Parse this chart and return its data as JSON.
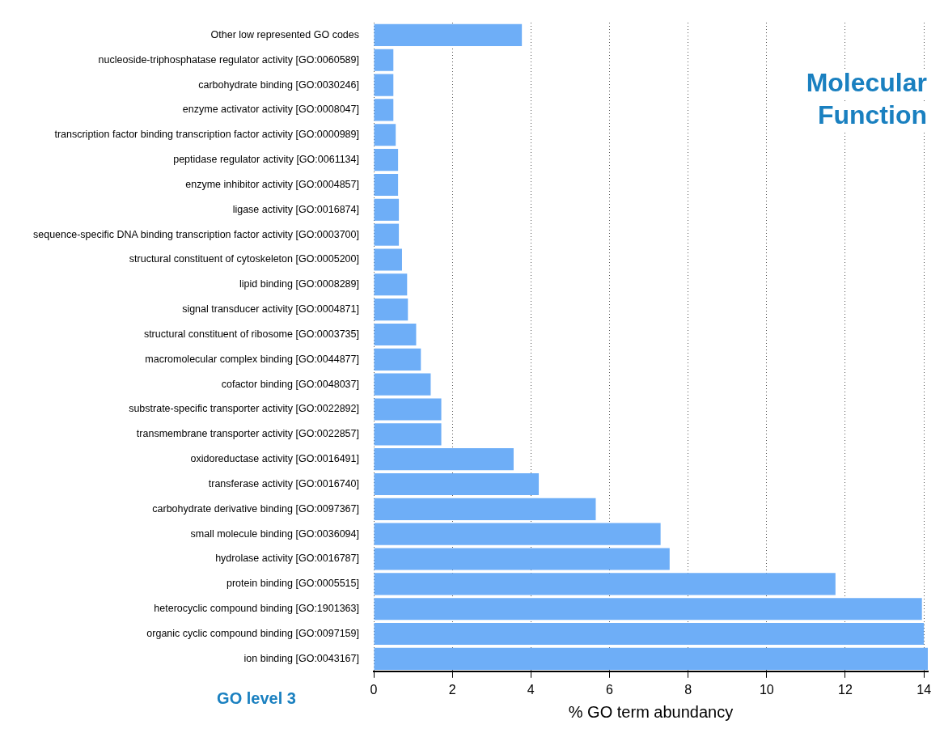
{
  "chart_data": {
    "type": "bar",
    "orientation": "horizontal",
    "title": "Molecular Function",
    "xlabel": "% GO term abundancy",
    "annotations": [
      "GO level 3"
    ],
    "categories": [
      "Other low represented GO codes",
      "nucleoside-triphosphatase regulator activity [GO:0060589]",
      "carbohydrate binding [GO:0030246]",
      "enzyme activator activity [GO:0008047]",
      "transcription factor binding transcription factor activity [GO:0000989]",
      "peptidase regulator activity [GO:0061134]",
      "enzyme inhibitor activity [GO:0004857]",
      "ligase activity [GO:0016874]",
      "sequence-specific DNA binding transcription factor activity [GO:0003700]",
      "structural constituent of cytoskeleton [GO:0005200]",
      "lipid binding [GO:0008289]",
      "signal transducer activity [GO:0004871]",
      "structural constituent of ribosome [GO:0003735]",
      "macromolecular complex binding [GO:0044877]",
      "cofactor binding [GO:0048037]",
      "substrate-specific transporter activity [GO:0022892]",
      "transmembrane transporter activity [GO:0022857]",
      "oxidoreductase activity [GO:0016491]",
      "transferase activity [GO:0016740]",
      "carbohydrate derivative binding [GO:0097367]",
      "small molecule binding [GO:0036094]",
      "hydrolase activity [GO:0016787]",
      "protein binding [GO:0005515]",
      "heterocyclic compound binding [GO:1901363]",
      "organic cyclic compound binding [GO:0097159]",
      "ion binding [GO:0043167]"
    ],
    "values": [
      3.77,
      0.5,
      0.5,
      0.5,
      0.56,
      0.62,
      0.62,
      0.64,
      0.64,
      0.72,
      0.85,
      0.87,
      1.08,
      1.2,
      1.45,
      1.72,
      1.72,
      3.56,
      4.2,
      5.65,
      7.3,
      7.53,
      11.75,
      13.95,
      14.0,
      14.1
    ],
    "color": "#6eaef7",
    "xlim": [
      0,
      14.1
    ],
    "xticks": [
      0,
      2,
      4,
      6,
      8,
      10,
      12,
      14
    ],
    "grid": "x"
  }
}
